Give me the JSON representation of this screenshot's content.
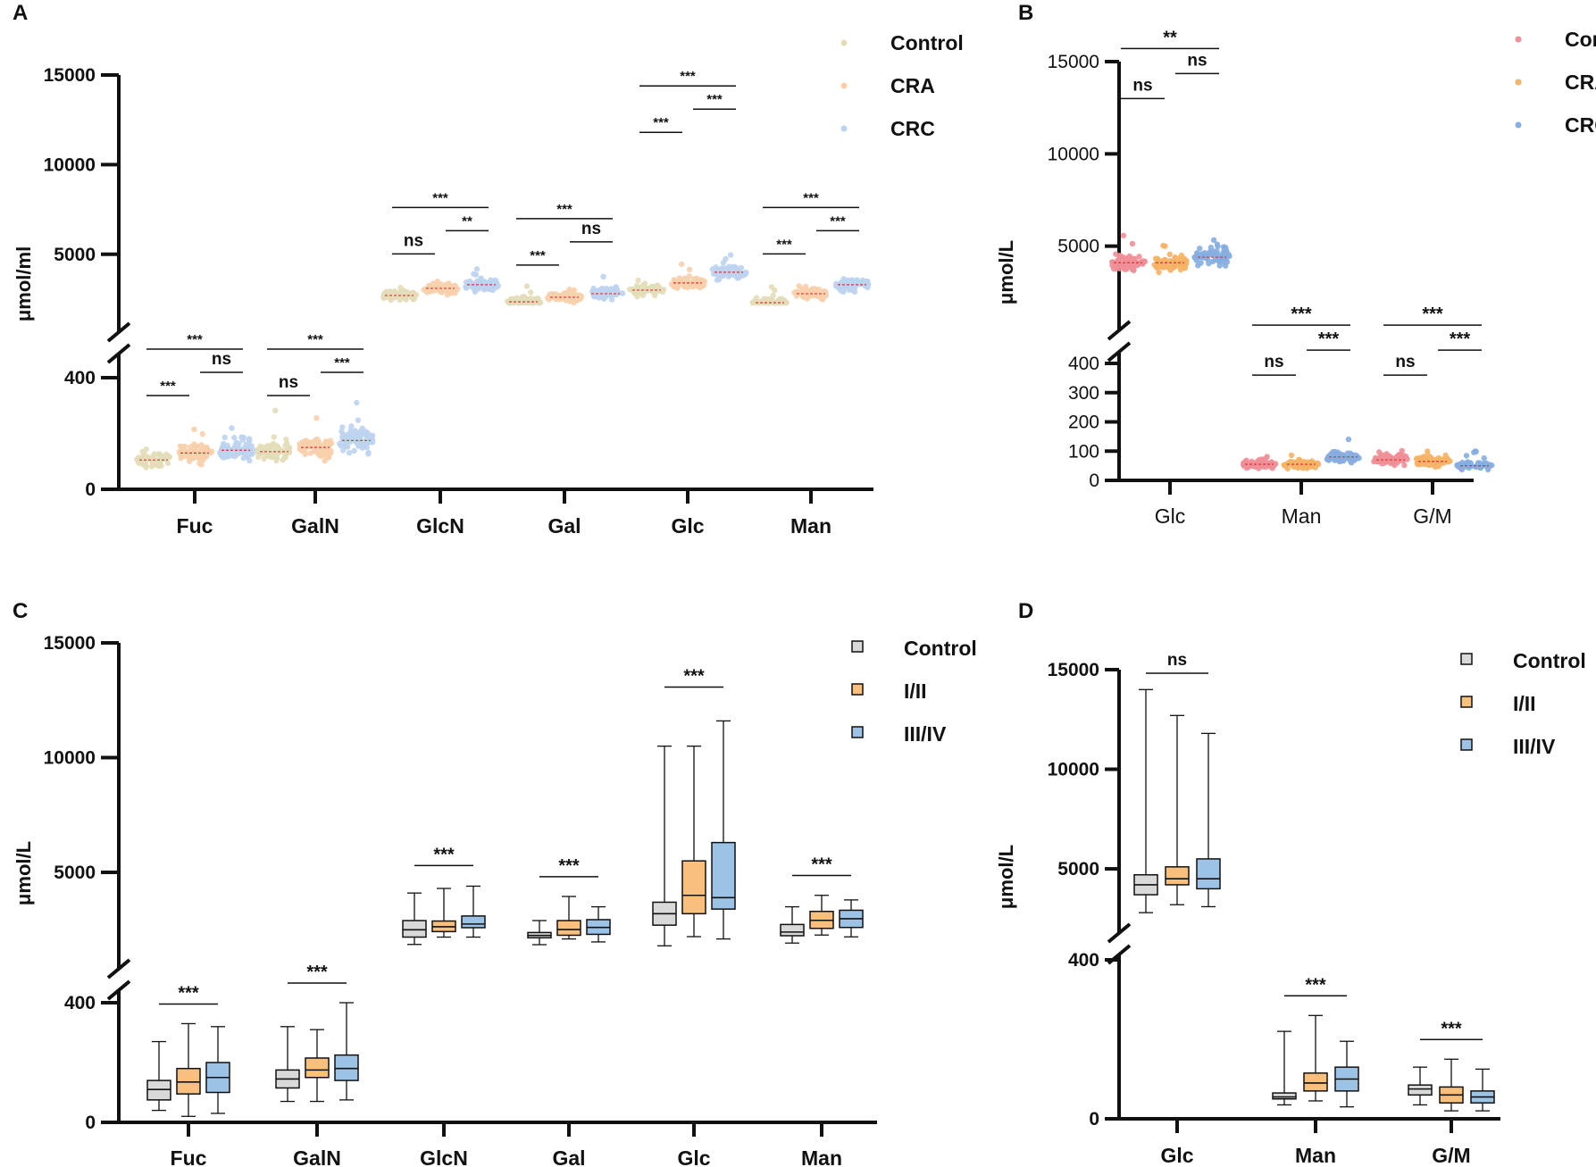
{
  "chart_data": [
    {
      "panel": "A",
      "type": "scatter",
      "ylabel": "μmol/ml",
      "y_ticks_lower": [
        "0",
        "400"
      ],
      "y_ticks_upper": [
        "5000",
        "10000",
        "15000"
      ],
      "categories": [
        "Fuc",
        "GalN",
        "GlcN",
        "Gal",
        "Glc",
        "Man"
      ],
      "legend": [
        "Control",
        "CRA",
        "CRC"
      ],
      "colors": {
        "Control": "#e3ddb9",
        "CRA": "#f8cfac",
        "CRC": "#bcd3ee"
      },
      "series": [
        {
          "name": "Control",
          "median": [
            105,
            135,
            2700,
            2350,
            3000,
            2300
          ]
        },
        {
          "name": "CRA",
          "median": [
            130,
            150,
            3100,
            2600,
            3400,
            2800
          ]
        },
        {
          "name": "CRC",
          "median": [
            140,
            175,
            3300,
            2800,
            4000,
            3300
          ]
        }
      ],
      "significance": [
        {
          "cat": "Fuc",
          "top": "***",
          "left": "***",
          "right": "ns"
        },
        {
          "cat": "GalN",
          "top": "***",
          "left": "ns",
          "right": "***"
        },
        {
          "cat": "GlcN",
          "top": "***",
          "left": "ns",
          "right": "**"
        },
        {
          "cat": "Gal",
          "top": "***",
          "left": "***",
          "right": "ns"
        },
        {
          "cat": "Glc",
          "top": "***",
          "left": "***",
          "right": "***"
        },
        {
          "cat": "Man",
          "top": "***",
          "left": "***",
          "right": "***"
        }
      ]
    },
    {
      "panel": "B",
      "type": "scatter",
      "ylabel": "μmol/L",
      "y_ticks_lower": [
        "0",
        "100",
        "200",
        "300",
        "400"
      ],
      "y_ticks_upper": [
        "5000",
        "10000",
        "15000"
      ],
      "categories": [
        "Glc",
        "Man",
        "G/M"
      ],
      "legend": [
        "Control",
        "CRA",
        "CRC"
      ],
      "colors": {
        "Control": "#ef8f97",
        "CRA": "#f6b266",
        "CRC": "#86aee0"
      },
      "series": [
        {
          "name": "Control",
          "median": [
            4100,
            55,
            70
          ]
        },
        {
          "name": "CRA",
          "median": [
            4100,
            55,
            65
          ]
        },
        {
          "name": "CRC",
          "median": [
            4400,
            80,
            50
          ]
        }
      ],
      "significance": [
        {
          "cat": "Glc",
          "top": "**",
          "left": "ns",
          "right": "ns"
        },
        {
          "cat": "Man",
          "top": "***",
          "left": "ns",
          "right": "***"
        },
        {
          "cat": "G/M",
          "top": "***",
          "left": "ns",
          "right": "***"
        }
      ]
    },
    {
      "panel": "C",
      "type": "box",
      "ylabel": "μmol/L",
      "y_ticks_lower": [
        "0",
        "400"
      ],
      "y_ticks_upper": [
        "5000",
        "10000",
        "15000"
      ],
      "categories": [
        "Fuc",
        "GalN",
        "GlcN",
        "Gal",
        "Glc",
        "Man"
      ],
      "legend": [
        "Control",
        "I/II",
        "III/IV"
      ],
      "colors": {
        "Control": "#d9d9d9",
        "I/II": "#f8c07c",
        "III/IV": "#9cc2e6"
      },
      "series": [
        {
          "name": "Control",
          "boxes": [
            [
              40,
              75,
              110,
              140,
              270
            ],
            [
              70,
              115,
              145,
              175,
              320
            ],
            [
              1860,
              2180,
              2500,
              2900,
              4100
            ],
            [
              1850,
              2150,
              2250,
              2380,
              2900
            ],
            [
              1800,
              2700,
              3200,
              3700,
              10500
            ],
            [
              1920,
              2240,
              2400,
              2730,
              3500
            ]
          ]
        },
        {
          "name": "I/II",
          "boxes": [
            [
              20,
              95,
              135,
              180,
              330
            ],
            [
              70,
              150,
              175,
              215,
              310
            ],
            [
              2180,
              2420,
              2630,
              2880,
              4300
            ],
            [
              2100,
              2260,
              2510,
              2900,
              3950
            ],
            [
              2200,
              3200,
              4000,
              5500,
              10500
            ],
            [
              2270,
              2560,
              2910,
              3300,
              4000
            ]
          ]
        },
        {
          "name": "III/IV",
          "boxes": [
            [
              30,
              100,
              150,
              200,
              320
            ],
            [
              75,
              140,
              180,
              225,
              400
            ],
            [
              2180,
              2590,
              2750,
              3100,
              4400
            ],
            [
              1970,
              2300,
              2600,
              2940,
              3500
            ],
            [
              2100,
              3400,
              3900,
              6300,
              11600
            ],
            [
              2190,
              2600,
              2980,
              3350,
              3800
            ]
          ]
        }
      ],
      "significance": [
        {
          "cat": "Fuc",
          "top": "***"
        },
        {
          "cat": "GalN",
          "top": "***"
        },
        {
          "cat": "GlcN",
          "top": "***"
        },
        {
          "cat": "Gal",
          "top": "***"
        },
        {
          "cat": "Glc",
          "top": "***"
        },
        {
          "cat": "Man",
          "top": "***"
        }
      ]
    },
    {
      "panel": "D",
      "type": "box",
      "ylabel": "μmol/L",
      "y_ticks_lower": [
        "0",
        "400"
      ],
      "y_ticks_upper": [
        "5000",
        "10000",
        "15000"
      ],
      "categories": [
        "Glc",
        "Man",
        "G/M"
      ],
      "legend": [
        "Control",
        "I/II",
        "III/IV"
      ],
      "colors": {
        "Control": "#d9d9d9",
        "I/II": "#f8c07c",
        "III/IV": "#9cc2e6"
      },
      "series": [
        {
          "name": "Control",
          "boxes": [
            [
              2800,
              3700,
              4200,
              4700,
              14000
            ],
            [
              35,
              50,
              55,
              65,
              220
            ],
            [
              35,
              60,
              75,
              85,
              130
            ]
          ]
        },
        {
          "name": "I/II",
          "boxes": [
            [
              3200,
              4200,
              4500,
              5100,
              12700
            ],
            [
              45,
              70,
              90,
              115,
              260
            ],
            [
              20,
              40,
              60,
              80,
              150
            ]
          ]
        },
        {
          "name": "III/IV",
          "boxes": [
            [
              3100,
              4000,
              4500,
              5500,
              11800
            ],
            [
              30,
              70,
              100,
              130,
              195
            ],
            [
              20,
              40,
              55,
              70,
              125
            ]
          ]
        }
      ],
      "significance": [
        {
          "cat": "Glc",
          "top": "ns"
        },
        {
          "cat": "Man",
          "top": "***"
        },
        {
          "cat": "G/M",
          "top": "***"
        }
      ]
    }
  ]
}
